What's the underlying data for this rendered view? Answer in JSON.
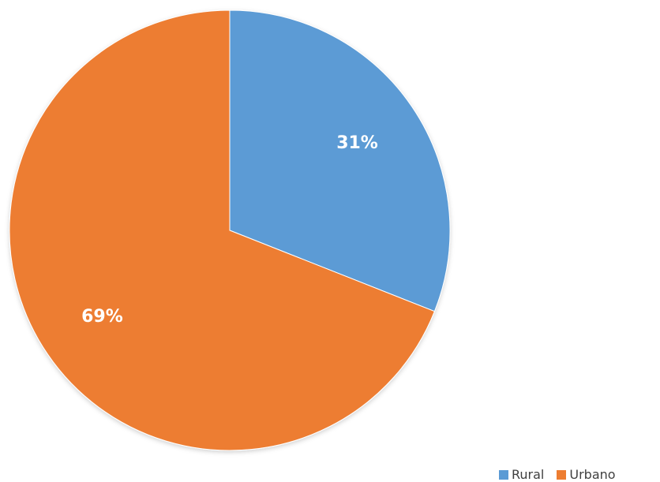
{
  "chart_data": {
    "type": "pie",
    "title": "",
    "legend_position": "bottom-right",
    "slices": [
      {
        "name": "Rural",
        "value": 31,
        "label": "31%",
        "color": "#5B9BD5"
      },
      {
        "name": "Urbano",
        "value": 69,
        "label": "69%",
        "color": "#ED7D31"
      }
    ]
  }
}
